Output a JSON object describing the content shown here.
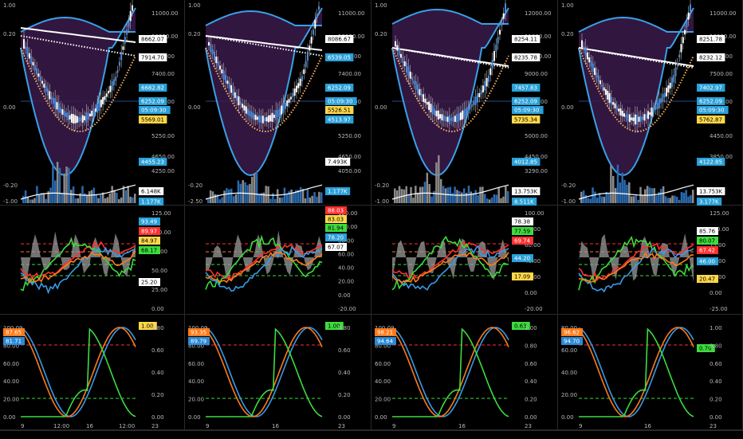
{
  "charts": [
    {
      "price_tags": [
        {
          "text": "8662.07",
          "bg": "#ffffff",
          "fg": "#000000"
        },
        {
          "text": "7914.70",
          "bg": "#ffffff",
          "fg": "#000000"
        },
        {
          "text": "6682.82",
          "bg": "#2aa0d8",
          "fg": "#ffffff"
        },
        {
          "text": "6252.09",
          "bg": "#2aa0d8",
          "fg": "#ffffff"
        },
        {
          "text": "05:09:30",
          "bg": "#2aa0d8",
          "fg": "#ffffff"
        },
        {
          "text": "5569.01",
          "bg": "#ffd84a",
          "fg": "#000000"
        },
        {
          "text": "4455.23",
          "bg": "#2aa0d8",
          "fg": "#ffffff"
        },
        {
          "text": "6.148K",
          "bg": "#ffffff",
          "fg": "#000000"
        },
        {
          "text": "1.177K",
          "bg": "#2aa0d8",
          "fg": "#ffffff"
        }
      ],
      "price_axis": [
        "11000.00",
        "10000.00",
        "9000.00",
        "7400.00",
        "6250.00",
        "5250.00",
        "4650.00",
        "4250.00"
      ],
      "left_axis": [
        "1.00",
        "0.20",
        "0.00",
        "-0.20",
        "-1.00"
      ],
      "osc_tags": [
        {
          "text": "93.49",
          "bg": "#2aa0d8",
          "fg": "#ffffff"
        },
        {
          "text": "89.97",
          "bg": "#ff3030",
          "fg": "#ffffff"
        },
        {
          "text": "84.97",
          "bg": "#ffd84a",
          "fg": "#000000"
        },
        {
          "text": "68.17",
          "bg": "#3ddc3d",
          "fg": "#000000"
        },
        {
          "text": "25.20",
          "bg": "#ffffff",
          "fg": "#000000"
        }
      ],
      "osc_axis": [
        "125.00",
        "100.00",
        "75.00",
        "50.00",
        "25.00",
        "0.00"
      ],
      "stoch_left": [
        "100.00",
        "80.00",
        "60.00",
        "40.00",
        "20.00",
        "0.00"
      ],
      "stoch_tags": [
        {
          "text": "87.65",
          "bg": "#ff7a1a",
          "fg": "#ffffff"
        },
        {
          "text": "81.71",
          "bg": "#2a8ad8",
          "fg": "#ffffff"
        }
      ],
      "stoch_right_tag": {
        "text": "1.00",
        "bg": "#ffd84a",
        "fg": "#000000"
      },
      "stoch_right_axis": [
        "0.80",
        "0.60",
        "0.40",
        "0.20",
        "0.00"
      ],
      "time_axis": [
        "9",
        "12:00",
        "16",
        "12:00",
        "23"
      ]
    },
    {
      "price_tags": [
        {
          "text": "8086.67",
          "bg": "#ffffff",
          "fg": "#000000"
        },
        {
          "text": "6539.05",
          "bg": "#2aa0d8",
          "fg": "#ffffff"
        },
        {
          "text": "6252.09",
          "bg": "#2aa0d8",
          "fg": "#ffffff"
        },
        {
          "text": "05:09:30",
          "bg": "#2aa0d8",
          "fg": "#ffffff"
        },
        {
          "text": "5526.51",
          "bg": "#ffd84a",
          "fg": "#000000"
        },
        {
          "text": "4513.97",
          "bg": "#2aa0d8",
          "fg": "#ffffff"
        },
        {
          "text": "7.493K",
          "bg": "#ffffff",
          "fg": "#000000"
        },
        {
          "text": "1.177K",
          "bg": "#2aa0d8",
          "fg": "#ffffff"
        }
      ],
      "price_axis": [
        "11000.00",
        "10000.00",
        "9000.00",
        "7400.00",
        "6250.00",
        "5250.00",
        "4650.00",
        "4050.00"
      ],
      "left_axis": [
        "1.00",
        "0.20",
        "0.00",
        "-0.20",
        "-2.50"
      ],
      "osc_tags": [
        {
          "text": "88.03",
          "bg": "#ff3030",
          "fg": "#ffffff"
        },
        {
          "text": "83.03",
          "bg": "#ffd84a",
          "fg": "#000000"
        },
        {
          "text": "81.94",
          "bg": "#3ddc3d",
          "fg": "#000000"
        },
        {
          "text": "78.20",
          "bg": "#2aa0d8",
          "fg": "#ffffff"
        },
        {
          "text": "67.07",
          "bg": "#ffffff",
          "fg": "#000000"
        }
      ],
      "osc_axis": [
        "120.00",
        "100.00",
        "80.00",
        "60.00",
        "40.00",
        "20.00",
        "0.00",
        "-20.00"
      ],
      "stoch_left": [
        "100.00",
        "80.00",
        "60.00",
        "40.00",
        "20.00",
        "0.00"
      ],
      "stoch_tags": [
        {
          "text": "93.35",
          "bg": "#ff7a1a",
          "fg": "#ffffff"
        },
        {
          "text": "89.79",
          "bg": "#2a8ad8",
          "fg": "#ffffff"
        }
      ],
      "stoch_right_tag": {
        "text": "1.00",
        "bg": "#3ddc3d",
        "fg": "#000000"
      },
      "stoch_right_axis": [
        "0.80",
        "0.60",
        "0.40",
        "0.20",
        "0.00"
      ],
      "time_axis": [
        "9",
        "16",
        "23"
      ]
    },
    {
      "price_tags": [
        {
          "text": "8254.11",
          "bg": "#ffffff",
          "fg": "#000000"
        },
        {
          "text": "8235.78",
          "bg": "#ffffff",
          "fg": "#000000"
        },
        {
          "text": "7457.83",
          "bg": "#2aa0d8",
          "fg": "#ffffff"
        },
        {
          "text": "6252.09",
          "bg": "#2aa0d8",
          "fg": "#ffffff"
        },
        {
          "text": "05:09:30",
          "bg": "#2aa0d8",
          "fg": "#ffffff"
        },
        {
          "text": "5735.34",
          "bg": "#ffd84a",
          "fg": "#000000"
        },
        {
          "text": "4012.85",
          "bg": "#2aa0d8",
          "fg": "#ffffff"
        },
        {
          "text": "13.753K",
          "bg": "#ffffff",
          "fg": "#000000"
        },
        {
          "text": "8.511K",
          "bg": "#2aa0d8",
          "fg": "#ffffff"
        }
      ],
      "price_axis": [
        "12000.00",
        "11000.00",
        "10000.00",
        "9000.00",
        "7500.00",
        "5000.00",
        "4450.00",
        "3290.00"
      ],
      "left_axis": [
        "1.00",
        "0.20",
        "0.00",
        "-0.20",
        "-1.00"
      ],
      "osc_tags": [
        {
          "text": "78.38",
          "bg": "#ffffff",
          "fg": "#000000"
        },
        {
          "text": "77.59",
          "bg": "#3ddc3d",
          "fg": "#000000"
        },
        {
          "text": "69.74",
          "bg": "#ff3030",
          "fg": "#ffffff"
        },
        {
          "text": "44.20",
          "bg": "#2aa0d8",
          "fg": "#ffffff"
        },
        {
          "text": "17.09",
          "bg": "#ffd84a",
          "fg": "#000000"
        }
      ],
      "osc_axis": [
        "100.00",
        "80.00",
        "60.00",
        "40.00",
        "20.00",
        "0.00",
        "-20.00"
      ],
      "stoch_left": [
        "100.00",
        "80.00",
        "60.00",
        "40.00",
        "20.00",
        "0.00"
      ],
      "stoch_tags": [
        {
          "text": "98.21",
          "bg": "#ff7a1a",
          "fg": "#ffffff"
        },
        {
          "text": "94.64",
          "bg": "#2a8ad8",
          "fg": "#ffffff"
        }
      ],
      "stoch_right_tag": {
        "text": "0.63",
        "bg": "#3ddc3d",
        "fg": "#000000"
      },
      "stoch_right_axis": [
        "1.00",
        "0.80",
        "0.60",
        "0.40",
        "0.20",
        "0.00"
      ],
      "time_axis": [
        "9",
        "16",
        "23"
      ]
    },
    {
      "price_tags": [
        {
          "text": "8251.78",
          "bg": "#ffffff",
          "fg": "#000000"
        },
        {
          "text": "8232.12",
          "bg": "#ffffff",
          "fg": "#000000"
        },
        {
          "text": "7402.97",
          "bg": "#2aa0d8",
          "fg": "#ffffff"
        },
        {
          "text": "6252.09",
          "bg": "#2aa0d8",
          "fg": "#ffffff"
        },
        {
          "text": "05:09:30",
          "bg": "#2aa0d8",
          "fg": "#ffffff"
        },
        {
          "text": "5762.87",
          "bg": "#ffd84a",
          "fg": "#000000"
        },
        {
          "text": "4122.85",
          "bg": "#2aa0d8",
          "fg": "#ffffff"
        },
        {
          "text": "13.753K",
          "bg": "#ffffff",
          "fg": "#000000"
        },
        {
          "text": "3.177K",
          "bg": "#2aa0d8",
          "fg": "#ffffff"
        }
      ],
      "price_axis": [
        "11000.00",
        "10000.00",
        "9000.00",
        "7500.00",
        "5050.00",
        "4450.00",
        "3850.00"
      ],
      "left_axis": [
        "1.00",
        "0.20",
        "0.00",
        "-0.20",
        "-1.00"
      ],
      "osc_tags": [
        {
          "text": "85.76",
          "bg": "#ffffff",
          "fg": "#000000"
        },
        {
          "text": "80.07",
          "bg": "#3ddc3d",
          "fg": "#000000"
        },
        {
          "text": "67.42",
          "bg": "#ff3030",
          "fg": "#ffffff"
        },
        {
          "text": "46.00",
          "bg": "#2aa0d8",
          "fg": "#ffffff"
        },
        {
          "text": "20.47",
          "bg": "#ffd84a",
          "fg": "#000000"
        }
      ],
      "osc_axis": [
        "125.00",
        "100.00",
        "75.00",
        "50.00",
        "25.00",
        "0.00",
        "-25.00"
      ],
      "stoch_left": [
        "80.00",
        "60.00",
        "40.00",
        "20.00",
        "0.00"
      ],
      "stoch_tags": [
        {
          "text": "96.62",
          "bg": "#ff7a1a",
          "fg": "#ffffff"
        },
        {
          "text": "94.70",
          "bg": "#2a8ad8",
          "fg": "#ffffff"
        }
      ],
      "stoch_right_tag": {
        "text": "0.70",
        "bg": "#3ddc3d",
        "fg": "#000000"
      },
      "stoch_right_axis": [
        "1.00",
        "0.80",
        "0.60",
        "0.40",
        "0.20",
        "0.00"
      ],
      "time_axis": [
        "9",
        "16",
        "23"
      ]
    }
  ],
  "colors": {
    "band": "#3aa0e8",
    "band_fill": "#3a1a4a",
    "ema_white": "#ffffff",
    "ema_dot_white": "#ffffff",
    "ema_dot_orange": "#ffb060",
    "vol_blue": "#2a6ab0",
    "vol_grey": "#8a8a8a",
    "osc_grey": "#9a9a9a",
    "osc_red": "#ff3030",
    "osc_green": "#3ddc3d",
    "osc_blue": "#3a9ae8",
    "osc_orange": "#ff7a1a",
    "dash_red": "#ff3030",
    "dash_green": "#3ddc3d",
    "dash_orange": "#ff7a1a",
    "stoch_blue": "#3a9ae8",
    "stoch_orange": "#ff7a1a",
    "stoch_green": "#3ddc3d"
  }
}
